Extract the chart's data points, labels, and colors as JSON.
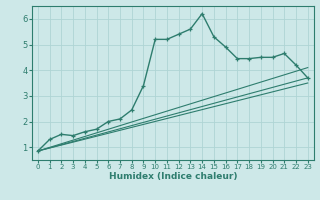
{
  "title": "",
  "xlabel": "Humidex (Indice chaleur)",
  "ylabel": "",
  "background_color": "#cde8e8",
  "grid_color": "#afd4d4",
  "line_color": "#2e7d6e",
  "xlim": [
    -0.5,
    23.5
  ],
  "ylim": [
    0.5,
    6.5
  ],
  "x_ticks": [
    0,
    1,
    2,
    3,
    4,
    5,
    6,
    7,
    8,
    9,
    10,
    11,
    12,
    13,
    14,
    15,
    16,
    17,
    18,
    19,
    20,
    21,
    22,
    23
  ],
  "y_ticks": [
    1,
    2,
    3,
    4,
    5,
    6
  ],
  "main_series_x": [
    0,
    1,
    2,
    3,
    4,
    5,
    6,
    7,
    8,
    9,
    10,
    11,
    12,
    13,
    14,
    15,
    16,
    17,
    18,
    19,
    20,
    21,
    22,
    23
  ],
  "main_series_y": [
    0.85,
    1.3,
    1.5,
    1.45,
    1.6,
    1.7,
    2.0,
    2.1,
    2.45,
    3.4,
    5.2,
    5.2,
    5.4,
    5.6,
    6.2,
    5.3,
    4.9,
    4.45,
    4.45,
    4.5,
    4.5,
    4.65,
    4.2,
    3.7
  ],
  "line1_x": [
    0,
    23
  ],
  "line1_y": [
    0.85,
    3.7
  ],
  "line2_x": [
    0,
    23
  ],
  "line2_y": [
    0.85,
    4.1
  ],
  "line3_x": [
    0,
    23
  ],
  "line3_y": [
    0.85,
    3.5
  ]
}
